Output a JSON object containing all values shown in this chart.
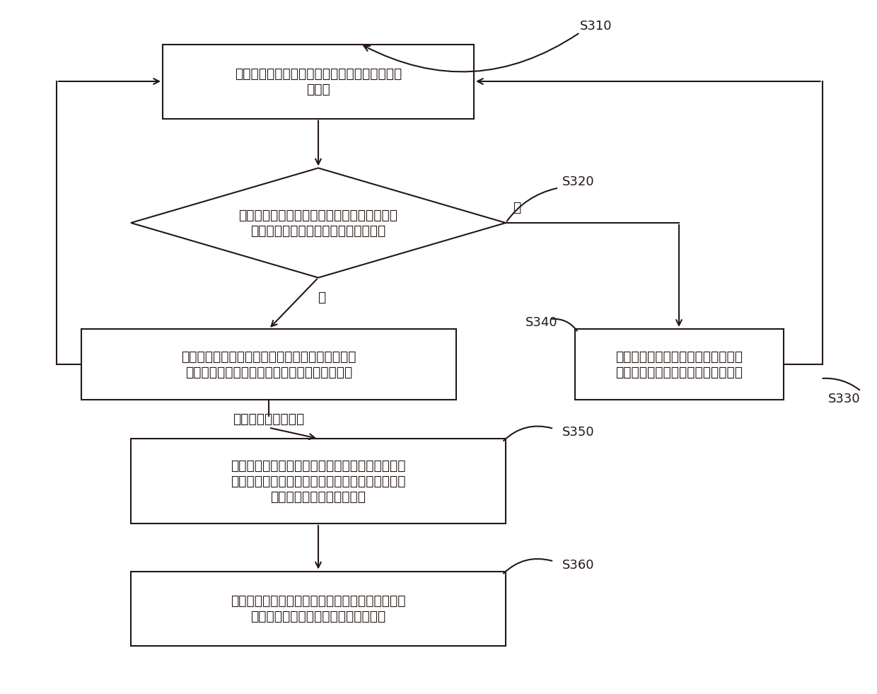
{
  "bg_color": "#ffffff",
  "line_color": "#231815",
  "box_color": "#ffffff",
  "text_color": "#231815",
  "font_size": 13.5,
  "label_font_size": 13,
  "s310_label": "S310",
  "s320_label": "S320",
  "s330_label": "S330",
  "s340_label": "S340",
  "s350_label": "S350",
  "s360_label": "S360",
  "box1_text": "选取流量比最小的机动车交通流，插入预设的候\n选相位",
  "diamond_text": "是否存在与当前候选相位中各机动车交通流均\n不冲突且为非候选的待选机动车交通流",
  "box3_text": "根据已生成的初始相位组以及当前候选相位，获得\n一个新的初始相位组，并清空候选相位中的元素",
  "box4_text": "在待选机动车交通流中选取流量比最\n小的机动车交通流，插入至候选相位",
  "box5_text": "再根据冲突关系，对初始相位组中的初始相位插入\n与该初始相位所含各机动车交通流均不冲突的非机\n动车交通流，得到目标相位",
  "box6_text": "将一个目标相位及其相位流量比作为一个目标相位\n组，由目标相位组构成信号灯相位参数",
  "yes_label": "是",
  "no_label": "否",
  "loop_label": "直至遍历流量比数据"
}
